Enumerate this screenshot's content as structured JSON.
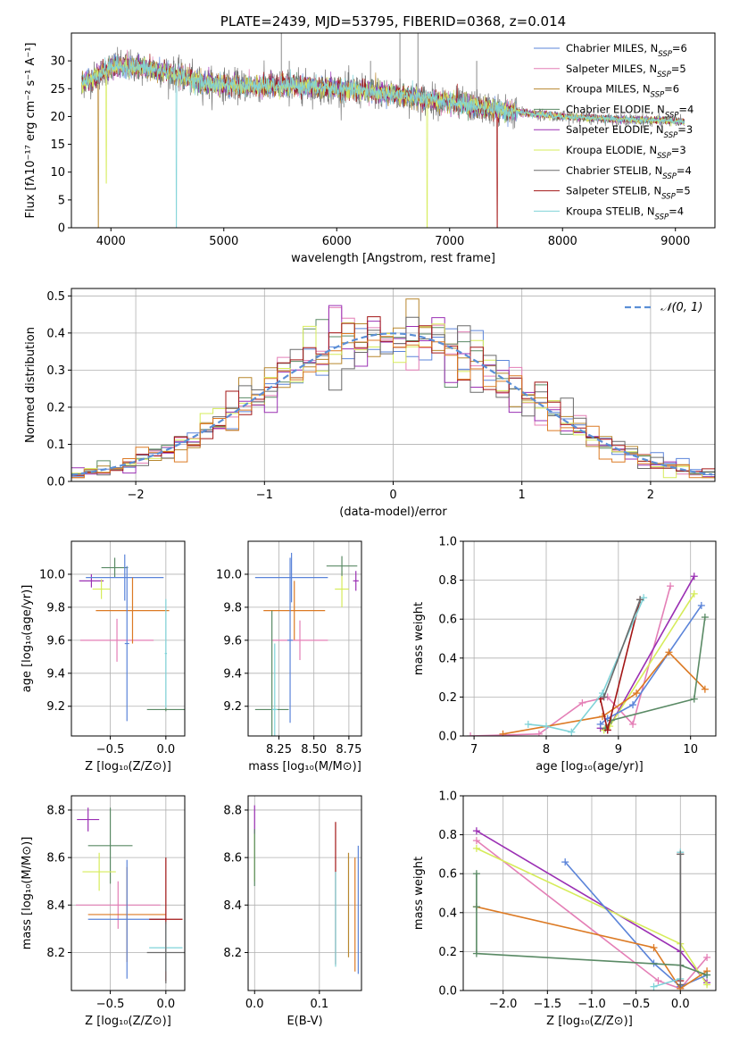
{
  "colors": {
    "Chabrier MILES": "#5b84d9",
    "Salpeter MILES": "#e47fb6",
    "Kroupa MILES": "#b8872f",
    "Chabrier ELODIE": "#5a8a65",
    "Salpeter ELODIE": "#9b30b4",
    "Kroupa ELODIE": "#d6ec5a",
    "Chabrier STELIB": "#6a6a6a",
    "Salpeter STELIB": "#a31616",
    "Kroupa STELIB": "#7fd3d8",
    "normal": "#5b8fd6",
    "extra_orange": "#dc7a24"
  },
  "chart_data": [
    {
      "id": "spectrum",
      "type": "line",
      "title": "PLATE=2439, MJD=53795, FIBERID=0368, z=0.014",
      "xlabel": "wavelength [Angstrom, rest frame]",
      "ylabel": "Flux [fλ10⁻¹⁷ erg cm⁻² s⁻¹ A⁻¹]",
      "xlim": [
        3650,
        9350
      ],
      "ylim": [
        0,
        35
      ],
      "xticks": [
        4000,
        5000,
        6000,
        7000,
        8000,
        9000
      ],
      "yticks": [
        0,
        5,
        10,
        15,
        20,
        25,
        30
      ],
      "grid": false,
      "legend_position": "top-right",
      "legend": [
        {
          "name": "Chabrier MILES",
          "sub": "SSP",
          "n": "6"
        },
        {
          "name": "Salpeter MILES",
          "sub": "SSP",
          "n": "5"
        },
        {
          "name": "Kroupa MILES",
          "sub": "SSP",
          "n": "6"
        },
        {
          "name": "Chabrier ELODIE",
          "sub": "SSP",
          "n": "4"
        },
        {
          "name": "Salpeter ELODIE",
          "sub": "SSP",
          "n": "3"
        },
        {
          "name": "Kroupa ELODIE",
          "sub": "SSP",
          "n": "3"
        },
        {
          "name": "Chabrier STELIB",
          "sub": "SSP",
          "n": "4"
        },
        {
          "name": "Salpeter STELIB",
          "sub": "SSP",
          "n": "5"
        },
        {
          "name": "Kroupa STELIB",
          "sub": "SSP",
          "n": "4"
        }
      ],
      "continuum": [
        [
          3740,
          26
        ],
        [
          3850,
          27
        ],
        [
          4000,
          29
        ],
        [
          4200,
          29
        ],
        [
          4500,
          28
        ],
        [
          4800,
          26
        ],
        [
          5200,
          25.5
        ],
        [
          5600,
          25.5
        ],
        [
          6000,
          25
        ],
        [
          6500,
          24
        ],
        [
          7000,
          22.5
        ],
        [
          7500,
          21
        ],
        [
          8000,
          20
        ],
        [
          8500,
          19.5
        ],
        [
          9000,
          19.2
        ],
        [
          9080,
          19
        ]
      ],
      "noise_sigma": 1.4,
      "dips": [
        {
          "series": "Kroupa MILES",
          "x": 3890,
          "y": 0
        },
        {
          "series": "Kroupa ELODIE",
          "x": 3960,
          "y": 8
        },
        {
          "series": "Kroupa STELIB",
          "x": 4580,
          "y": 0
        },
        {
          "series": "Kroupa ELODIE",
          "x": 6800,
          "y": 0
        },
        {
          "series": "Salpeter STELIB",
          "x": 7420,
          "y": 0
        }
      ],
      "spikes": [
        {
          "x": 5510,
          "y": 35
        },
        {
          "x": 5580,
          "y": 30
        },
        {
          "x": 6300,
          "y": 30
        },
        {
          "x": 6560,
          "y": 35
        },
        {
          "x": 6720,
          "y": 35
        },
        {
          "x": 7240,
          "y": 30
        }
      ]
    },
    {
      "id": "residuals",
      "type": "histogram",
      "xlabel": "(data-model)/error",
      "ylabel": "Normed distribution",
      "xlim": [
        -2.5,
        2.5
      ],
      "ylim": [
        0,
        0.52
      ],
      "xticks": [
        -2,
        -1,
        0,
        1,
        2
      ],
      "yticks": [
        0.0,
        0.1,
        0.2,
        0.3,
        0.4,
        0.5
      ],
      "grid": true,
      "legend_position": "top-right",
      "legend_label": "𝒩(0, 1)",
      "bin_width": 0.1,
      "jitter": 0.045
    },
    {
      "id": "age-vs-Z",
      "type": "errorbar",
      "xlabel": "Z [log₁₀(Z/Z⊙)]",
      "ylabel": "age  [log₁₀(age/yr)]",
      "xlim": [
        -0.85,
        0.17
      ],
      "ylim": [
        9.02,
        10.2
      ],
      "xticks": [
        -0.5,
        0.0
      ],
      "yticks": [
        9.2,
        9.4,
        9.6,
        9.8,
        10.0
      ],
      "grid": true,
      "points": [
        {
          "series": "Salpeter ELODIE",
          "x": -0.67,
          "y": 9.96,
          "xerr": 0.11,
          "yerr": 0.04
        },
        {
          "series": "Kroupa ELODIE",
          "x": -0.58,
          "y": 9.91,
          "xerr": 0.08,
          "yerr": 0.06
        },
        {
          "series": "Chabrier ELODIE",
          "x": -0.46,
          "y": 10.04,
          "xerr": 0.12,
          "yerr": 0.06
        },
        {
          "series": "Chabrier MILES",
          "x": -0.37,
          "y": 9.98,
          "xerr": 0.35,
          "yerr": 0.14
        },
        {
          "series": "Salpeter MILES",
          "x": -0.44,
          "y": 9.6,
          "xerr": 0.33,
          "yerr": 0.13
        },
        {
          "series": "extra_orange",
          "x": -0.3,
          "y": 9.78,
          "xerr": 0.33,
          "yerr": 0.2
        },
        {
          "series": "Chabrier MILES",
          "x": -0.35,
          "y": 9.58,
          "xerr": 0.02,
          "yerr": 0.47
        },
        {
          "series": "Kroupa STELIB",
          "x": 0.0,
          "y": 9.52,
          "xerr": 0.01,
          "yerr": 0.33
        },
        {
          "series": "Chabrier ELODIE",
          "x": 0.0,
          "y": 9.18,
          "xerr": 0.17,
          "yerr": 0.01
        }
      ]
    },
    {
      "id": "age-vs-mass",
      "type": "errorbar",
      "xlabel": "mass [log₁₀(M/M⊙)]",
      "ylabel": "",
      "xlim": [
        8.03,
        8.84
      ],
      "ylim": [
        9.02,
        10.2
      ],
      "xticks": [
        8.25,
        8.5,
        8.75
      ],
      "yticks": [
        9.2,
        9.4,
        9.6,
        9.8,
        10.0
      ],
      "grid": true,
      "points": [
        {
          "series": "Salpeter ELODIE",
          "x": 8.8,
          "y": 9.96,
          "xerr": 0.02,
          "yerr": 0.06
        },
        {
          "series": "Kroupa ELODIE",
          "x": 8.7,
          "y": 9.91,
          "xerr": 0.05,
          "yerr": 0.11
        },
        {
          "series": "Chabrier ELODIE",
          "x": 8.7,
          "y": 10.05,
          "xerr": 0.11,
          "yerr": 0.06
        },
        {
          "series": "Chabrier MILES",
          "x": 8.34,
          "y": 9.98,
          "xerr": 0.26,
          "yerr": 0.15
        },
        {
          "series": "extra_orange",
          "x": 8.36,
          "y": 9.78,
          "xerr": 0.22,
          "yerr": 0.18
        },
        {
          "series": "Salpeter MILES",
          "x": 8.4,
          "y": 9.6,
          "xerr": 0.2,
          "yerr": 0.12
        },
        {
          "series": "Chabrier ELODIE",
          "x": 8.2,
          "y": 9.18,
          "xerr": 0.12,
          "yerr": 0.6
        },
        {
          "series": "Kroupa STELIB",
          "x": 8.22,
          "y": 9.18,
          "xerr": 0.02,
          "yerr": 0.4
        },
        {
          "series": "Chabrier MILES",
          "x": 8.33,
          "y": 9.6,
          "xerr": 0.02,
          "yerr": 0.5
        }
      ]
    },
    {
      "id": "weight-vs-age",
      "type": "line",
      "xlabel": "age  [log₁₀(age/yr)]",
      "ylabel": "mass weight",
      "xlim": [
        6.85,
        10.35
      ],
      "ylim": [
        0,
        1
      ],
      "xticks": [
        7,
        8,
        9,
        10
      ],
      "yticks": [
        0.0,
        0.2,
        0.4,
        0.6,
        0.8,
        1.0
      ],
      "grid": true,
      "series": [
        {
          "name": "Salpeter MILES",
          "x": [
            6.95,
            7.9,
            8.5,
            8.85,
            9.2,
            9.72
          ],
          "y": [
            0.0,
            0.01,
            0.17,
            0.2,
            0.06,
            0.77
          ]
        },
        {
          "name": "Salpeter ELODIE",
          "x": [
            8.75,
            8.85,
            10.05
          ],
          "y": [
            0.04,
            0.03,
            0.82
          ]
        },
        {
          "name": "Kroupa ELODIE",
          "x": [
            8.8,
            8.88,
            10.05
          ],
          "y": [
            0.03,
            0.05,
            0.73
          ]
        },
        {
          "name": "Chabrier MILES",
          "x": [
            8.75,
            8.85,
            9.2,
            10.15
          ],
          "y": [
            0.06,
            0.09,
            0.16,
            0.67
          ]
        },
        {
          "name": "extra_orange",
          "x": [
            7.4,
            8.78,
            9.25,
            9.7,
            10.2
          ],
          "y": [
            0.01,
            0.1,
            0.22,
            0.43,
            0.24
          ]
        },
        {
          "name": "Chabrier ELODIE",
          "x": [
            8.82,
            8.9,
            10.05,
            10.2
          ],
          "y": [
            0.04,
            0.08,
            0.19,
            0.61
          ]
        },
        {
          "name": "Salpeter STELIB",
          "x": [
            8.75,
            8.85,
            9.3
          ],
          "y": [
            0.19,
            0.03,
            0.7
          ]
        },
        {
          "name": "Kroupa STELIB",
          "x": [
            7.75,
            8.0,
            8.35,
            8.78,
            9.35
          ],
          "y": [
            0.06,
            0.05,
            0.02,
            0.22,
            0.71
          ]
        },
        {
          "name": "Chabrier STELIB",
          "x": [
            8.8,
            9.3
          ],
          "y": [
            0.2,
            0.7
          ]
        }
      ]
    },
    {
      "id": "mass-vs-Z",
      "type": "errorbar",
      "xlabel": "Z [log₁₀(Z/Z⊙)]",
      "ylabel": "mass [log₁₀(M/M⊙)]",
      "xlim": [
        -0.85,
        0.17
      ],
      "ylim": [
        8.04,
        8.86
      ],
      "xticks": [
        -0.5,
        0.0
      ],
      "yticks": [
        8.2,
        8.4,
        8.6,
        8.8
      ],
      "grid": true,
      "points": [
        {
          "series": "Salpeter ELODIE",
          "x": -0.7,
          "y": 8.76,
          "xerr": 0.1,
          "yerr": 0.05
        },
        {
          "series": "Chabrier ELODIE",
          "x": -0.5,
          "y": 8.65,
          "xerr": 0.2,
          "yerr": 0.16
        },
        {
          "series": "Kroupa ELODIE",
          "x": -0.6,
          "y": 8.54,
          "xerr": 0.15,
          "yerr": 0.08
        },
        {
          "series": "Salpeter MILES",
          "x": -0.43,
          "y": 8.4,
          "xerr": 0.38,
          "yerr": 0.1
        },
        {
          "series": "extra_orange",
          "x": -0.35,
          "y": 8.36,
          "xerr": 0.35,
          "yerr": 0.2
        },
        {
          "series": "Chabrier MILES",
          "x": -0.35,
          "y": 8.34,
          "xerr": 0.35,
          "yerr": 0.25
        },
        {
          "series": "Salpeter STELIB",
          "x": 0.0,
          "y": 8.34,
          "xerr": 0.15,
          "yerr": 0.26
        },
        {
          "series": "Kroupa STELIB",
          "x": 0.0,
          "y": 8.22,
          "xerr": 0.15,
          "yerr": 0.1
        },
        {
          "series": "Chabrier STELIB",
          "x": 0.0,
          "y": 8.2,
          "xerr": 0.17,
          "yerr": 0.13
        }
      ]
    },
    {
      "id": "mass-vs-EBV",
      "type": "errorbar",
      "xlabel": "E(B-V)",
      "ylabel": "",
      "xlim": [
        -0.01,
        0.165
      ],
      "ylim": [
        8.04,
        8.86
      ],
      "xticks": [
        0.0,
        0.1
      ],
      "yticks": [
        8.2,
        8.4,
        8.6,
        8.8
      ],
      "grid": true,
      "points": [
        {
          "series": "Salpeter ELODIE",
          "x": 0.0,
          "y": 8.76,
          "xerr": 0.0,
          "yerr": 0.06
        },
        {
          "series": "Kroupa ELODIE",
          "x": 0.0,
          "y": 8.6,
          "xerr": 0.0,
          "yerr": 0.1
        },
        {
          "series": "Chabrier ELODIE",
          "x": 0.0,
          "y": 8.6,
          "xerr": 0.0,
          "yerr": 0.12
        },
        {
          "series": "Salpeter STELIB",
          "x": 0.125,
          "y": 8.45,
          "xerr": 0.0,
          "yerr": 0.3
        },
        {
          "series": "Kroupa STELIB",
          "x": 0.125,
          "y": 8.34,
          "xerr": 0.0,
          "yerr": 0.2
        },
        {
          "series": "Kroupa MILES",
          "x": 0.145,
          "y": 8.4,
          "xerr": 0.0,
          "yerr": 0.22
        },
        {
          "series": "extra_orange",
          "x": 0.155,
          "y": 8.36,
          "xerr": 0.0,
          "yerr": 0.24
        },
        {
          "series": "Chabrier MILES",
          "x": 0.16,
          "y": 8.38,
          "xerr": 0.0,
          "yerr": 0.27
        }
      ]
    },
    {
      "id": "weight-vs-Z",
      "type": "line",
      "xlabel": "Z [log₁₀(Z/Z⊙)]",
      "ylabel": "mass weight",
      "xlim": [
        -2.45,
        0.4
      ],
      "ylim": [
        0,
        1
      ],
      "xticks": [
        -2.0,
        -1.5,
        -1.0,
        -0.5,
        0.0
      ],
      "yticks": [
        0.0,
        0.2,
        0.4,
        0.6,
        0.8,
        1.0
      ],
      "grid": true,
      "series": [
        {
          "name": "Salpeter ELODIE",
          "x": [
            -2.3,
            0.0,
            0.3
          ],
          "y": [
            0.82,
            0.2,
            0.04
          ]
        },
        {
          "name": "Salpeter MILES",
          "x": [
            -2.3,
            -0.25,
            0.0,
            0.3
          ],
          "y": [
            0.77,
            0.05,
            0.01,
            0.17
          ]
        },
        {
          "name": "Kroupa ELODIE",
          "x": [
            -2.3,
            0.0,
            0.3
          ],
          "y": [
            0.73,
            0.24,
            0.03
          ]
        },
        {
          "name": "Chabrier MILES",
          "x": [
            -1.3,
            -0.3,
            0.0,
            0.3
          ],
          "y": [
            0.66,
            0.14,
            0.02,
            0.08
          ]
        },
        {
          "name": "extra_orange",
          "x": [
            -2.3,
            -0.3,
            0.0,
            0.3
          ],
          "y": [
            0.43,
            0.22,
            0.01,
            0.1
          ]
        },
        {
          "name": "Chabrier ELODIE",
          "x": [
            -2.3,
            -2.3,
            -2.3,
            0.0,
            0.3
          ],
          "y": [
            0.6,
            0.43,
            0.19,
            0.13,
            0.08
          ]
        },
        {
          "name": "Salpeter STELIB",
          "x": [
            0.0,
            0.0
          ],
          "y": [
            0.7,
            0.05
          ]
        },
        {
          "name": "Kroupa STELIB",
          "x": [
            0.0,
            0.0,
            -0.3
          ],
          "y": [
            0.71,
            0.06,
            0.02
          ]
        },
        {
          "name": "Chabrier STELIB",
          "x": [
            0.0,
            0.0
          ],
          "y": [
            0.7,
            0.03
          ]
        }
      ]
    }
  ]
}
